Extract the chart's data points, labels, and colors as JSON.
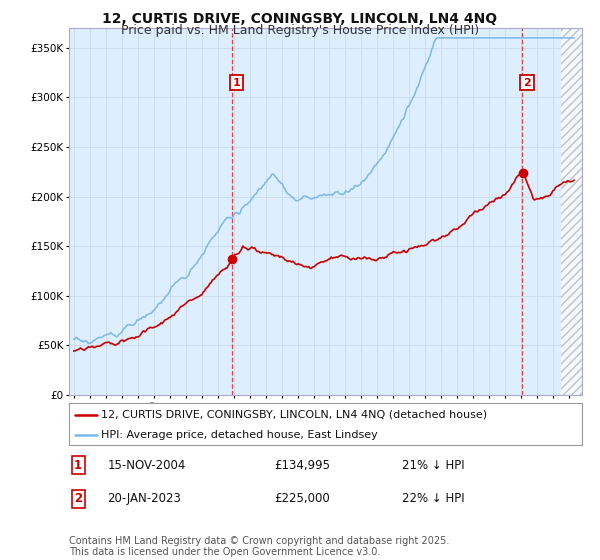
{
  "title": "12, CURTIS DRIVE, CONINGSBY, LINCOLN, LN4 4NQ",
  "subtitle": "Price paid vs. HM Land Registry's House Price Index (HPI)",
  "ylabel_values": [
    "£0",
    "£50K",
    "£100K",
    "£150K",
    "£200K",
    "£250K",
    "£300K",
    "£350K"
  ],
  "yticks": [
    0,
    50000,
    100000,
    150000,
    200000,
    250000,
    300000,
    350000
  ],
  "ylim": [
    0,
    370000
  ],
  "xlim_start": 1994.7,
  "xlim_end": 2026.8,
  "hpi_color": "#7ab8e8",
  "hpi_fill_color": "#ddeeff",
  "price_color": "#cc0000",
  "dashed_color": "#dd4444",
  "sale1_year": 2004.87,
  "sale1_price": 134995,
  "sale2_year": 2023.05,
  "sale2_price": 225000,
  "legend_line1": "12, CURTIS DRIVE, CONINGSBY, LINCOLN, LN4 4NQ (detached house)",
  "legend_line2": "HPI: Average price, detached house, East Lindsey",
  "footnote": "Contains HM Land Registry data © Crown copyright and database right 2025.\nThis data is licensed under the Open Government Licence v3.0.",
  "background_color": "#ffffff",
  "grid_color": "#ccddee",
  "title_fontsize": 10,
  "subtitle_fontsize": 9,
  "axis_fontsize": 8,
  "legend_fontsize": 8,
  "footnote_fontsize": 7
}
